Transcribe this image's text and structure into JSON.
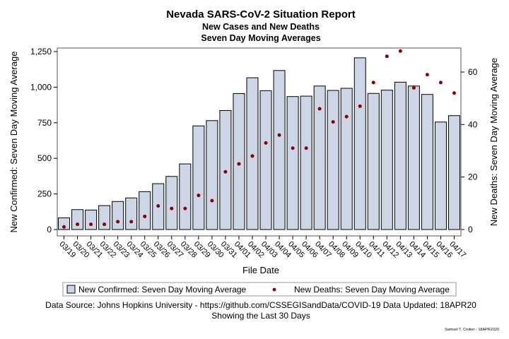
{
  "chart_data": {
    "type": "bar",
    "title": "Nevada SARS-CoV-2 Situation Report",
    "subtitle_1": "New Cases and New Deaths",
    "subtitle_2": "Seven Day Moving Averages",
    "xlabel": "File Date",
    "ylabel_left": "New Confirmed: Seven Day Moving Average",
    "ylabel_right": "New Deaths: Seven Day Moving Average",
    "categories": [
      "03/19",
      "03/20",
      "03/21",
      "03/22",
      "03/23",
      "03/24",
      "03/25",
      "03/26",
      "03/27",
      "03/28",
      "03/29",
      "03/30",
      "03/31",
      "04/01",
      "04/02",
      "04/03",
      "04/04",
      "04/05",
      "04/06",
      "04/07",
      "04/08",
      "04/09",
      "04/10",
      "04/11",
      "04/12",
      "04/13",
      "04/14",
      "04/15",
      "04/16",
      "04/17"
    ],
    "y_left_ticks": [
      "0",
      "250",
      "500",
      "750",
      "1,000",
      "1,250"
    ],
    "y_right_ticks": [
      "0",
      "20",
      "40",
      "60"
    ],
    "ylim_left": [
      0,
      1250
    ],
    "ylim_right": [
      0,
      67.4
    ],
    "grid": false,
    "legend_position": "bottom",
    "series": [
      {
        "name": "New Confirmed: Seven Day Moving Average",
        "type": "bar",
        "axis": "left",
        "color": "#cdd6e6",
        "edge_color": "#000000",
        "values": [
          82,
          140,
          137,
          168,
          197,
          222,
          266,
          322,
          373,
          461,
          728,
          765,
          836,
          955,
          1066,
          975,
          1117,
          934,
          937,
          1008,
          977,
          992,
          1206,
          956,
          979,
          1035,
          1008,
          949,
          755,
          800
        ]
      },
      {
        "name": "New Deaths: Seven Day Moving Average",
        "type": "scatter",
        "axis": "right",
        "color": "#8b0000",
        "values": [
          1,
          2,
          2,
          2,
          3,
          3,
          5,
          9,
          8,
          8,
          13,
          11,
          22,
          25,
          28,
          33,
          36,
          31,
          31,
          46,
          41,
          43,
          47,
          56,
          66,
          68,
          54,
          59,
          56,
          52
        ]
      }
    ]
  },
  "footer": {
    "source": "Data Source: Johns Hopkins University - https://github.com/CSSEGISandData/COVID-19 Data Updated: 18APR20",
    "window": "Showing the Last 30 Days",
    "credit": "Samuel T. Croker - 18APR2020"
  }
}
